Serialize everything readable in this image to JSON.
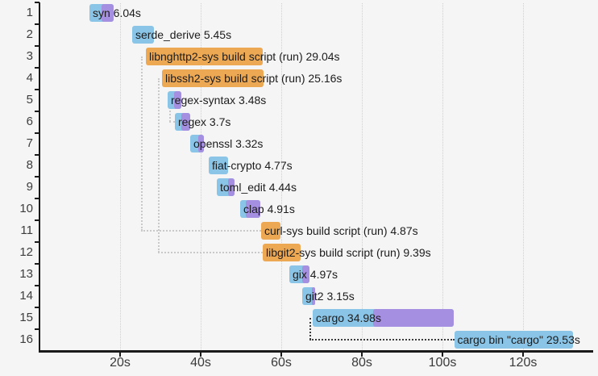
{
  "page": {
    "background": "#f5f5f5"
  },
  "chart_data": {
    "type": "gantt",
    "title": "",
    "x_axis": {
      "tick_seconds": [
        20,
        40,
        60,
        80,
        100,
        120
      ],
      "tick_labels": [
        "20s",
        "40s",
        "60s",
        "80s",
        "100s",
        "120s"
      ],
      "min_s": 0,
      "max_s": 137,
      "grid": "dotted-vertical"
    },
    "y_axis": {
      "row_labels": [
        "1",
        "2",
        "3",
        "4",
        "5",
        "6",
        "7",
        "8",
        "9",
        "10",
        "11",
        "12",
        "13",
        "14",
        "15",
        "16"
      ]
    },
    "colors": {
      "compile": "#8ac4e6",
      "codegen": "#a58fe0",
      "build_script": "#eda853",
      "grid": "#cfcfcf",
      "axis": "#1a1a1a",
      "dep_light": "#c9c9c9",
      "dep_dark": "#3c3c3c",
      "bar_text": "#1c1c1c",
      "tick_text": "#3a3a3a"
    },
    "units": [
      {
        "row": 1,
        "name": "syn",
        "duration": "6.04s",
        "label": "syn 6.04s",
        "kind": "compile",
        "start_s": 12.4,
        "codegen_s": 15.4,
        "end_s": 18.44
      },
      {
        "row": 2,
        "name": "serde_derive",
        "duration": "5.45s",
        "label": "serde_derive 5.45s",
        "kind": "compile",
        "start_s": 23.0,
        "codegen_s": null,
        "end_s": 28.45
      },
      {
        "row": 3,
        "name": "libnghttp2-sys build script (run)",
        "duration": "29.04s",
        "label": "libnghttp2-sys build script (run) 29.04s",
        "kind": "build_script",
        "start_s": 26.4,
        "codegen_s": null,
        "end_s": 55.44
      },
      {
        "row": 4,
        "name": "libssh2-sys build script (run)",
        "duration": "25.16s",
        "label": "libssh2-sys build script (run) 25.16s",
        "kind": "build_script",
        "start_s": 30.4,
        "codegen_s": null,
        "end_s": 55.56
      },
      {
        "row": 5,
        "name": "regex-syntax",
        "duration": "3.48s",
        "label": "regex-syntax 3.48s",
        "kind": "compile",
        "start_s": 31.8,
        "codegen_s": 33.4,
        "end_s": 35.28
      },
      {
        "row": 6,
        "name": "regex",
        "duration": "3.7s",
        "label": "regex 3.7s",
        "kind": "compile",
        "start_s": 33.6,
        "codegen_s": 35.2,
        "end_s": 37.3
      },
      {
        "row": 7,
        "name": "openssl",
        "duration": "3.32s",
        "label": "openssl 3.32s",
        "kind": "compile",
        "start_s": 37.4,
        "codegen_s": 39.4,
        "end_s": 40.72
      },
      {
        "row": 8,
        "name": "fiat-crypto",
        "duration": "4.77s",
        "label": "fiat-crypto 4.77s",
        "kind": "compile",
        "start_s": 42.0,
        "codegen_s": null,
        "end_s": 46.77
      },
      {
        "row": 9,
        "name": "toml_edit",
        "duration": "4.44s",
        "label": "toml_edit 4.44s",
        "kind": "compile",
        "start_s": 44.0,
        "codegen_s": 46.8,
        "end_s": 48.44
      },
      {
        "row": 10,
        "name": "clap",
        "duration": "4.91s",
        "label": "clap 4.91s",
        "kind": "compile",
        "start_s": 49.8,
        "codegen_s": 51.2,
        "end_s": 54.71
      },
      {
        "row": 11,
        "name": "curl-sys build script (run)",
        "duration": "4.87s",
        "label": "curl-sys build script (run) 4.87s",
        "kind": "build_script",
        "start_s": 55.0,
        "codegen_s": null,
        "end_s": 59.87
      },
      {
        "row": 12,
        "name": "libgit2-sys build script (run)",
        "duration": "9.39s",
        "label": "libgit2-sys build script (run) 9.39s",
        "kind": "build_script",
        "start_s": 55.4,
        "codegen_s": null,
        "end_s": 64.79
      },
      {
        "row": 13,
        "name": "gix",
        "duration": "4.97s",
        "label": "gix 4.97s",
        "kind": "compile",
        "start_s": 62.0,
        "codegen_s": 65.2,
        "end_s": 66.97
      },
      {
        "row": 14,
        "name": "git2",
        "duration": "3.15s",
        "label": "git2 3.15s",
        "kind": "compile",
        "start_s": 65.2,
        "codegen_s": 67.6,
        "end_s": 68.35
      },
      {
        "row": 15,
        "name": "cargo",
        "duration": "34.98s",
        "label": "cargo 34.98s",
        "kind": "compile",
        "start_s": 67.8,
        "codegen_s": 82.8,
        "end_s": 102.78
      },
      {
        "row": 16,
        "name": "cargo bin \"cargo\"",
        "duration": "29.53s",
        "label": "cargo bin \"cargo\" 29.53s",
        "kind": "compile",
        "start_s": 102.9,
        "codegen_s": null,
        "end_s": 132.43
      }
    ],
    "dependency_lines": [
      {
        "from_row": 3,
        "to_row": 11,
        "x_s": 25.2,
        "shade": "light"
      },
      {
        "from_row": 4,
        "to_row": 12,
        "x_s": 29.4,
        "shade": "light"
      },
      {
        "from_row": 5,
        "to_row": 6,
        "x_s": 32.2,
        "shade": "light"
      },
      {
        "from_row": 15,
        "to_row": 16,
        "x_s": 67.0,
        "shade": "dark"
      }
    ]
  }
}
